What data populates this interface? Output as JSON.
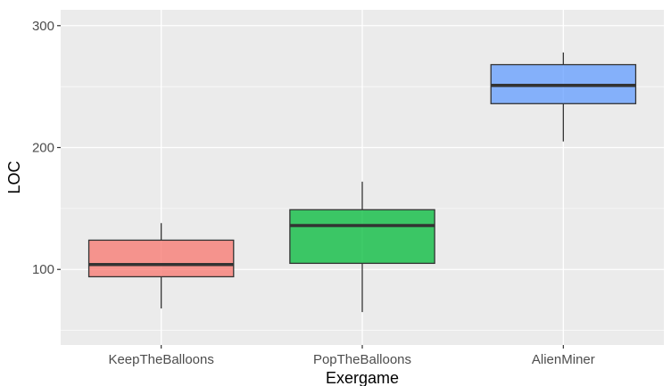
{
  "chart_data": {
    "type": "boxplot",
    "title": "",
    "xlabel": "Exergame",
    "ylabel": "LOC",
    "ylim": [
      38,
      313
    ],
    "yticks": [
      100,
      200,
      300
    ],
    "y_minor_ticks": [
      50,
      150,
      250
    ],
    "grid": true,
    "legend": "none",
    "categories": [
      "KeepTheBalloons",
      "PopTheBalloons",
      "AlienMiner"
    ],
    "boxes": [
      {
        "category": "KeepTheBalloons",
        "min": 68,
        "q1": 94,
        "median": 104,
        "q3": 124,
        "max": 138,
        "color": "#F8766D"
      },
      {
        "category": "PopTheBalloons",
        "min": 65,
        "q1": 105,
        "median": 136,
        "q3": 149,
        "max": 172,
        "color": "#00BA38"
      },
      {
        "category": "AlienMiner",
        "min": 205,
        "q1": 236,
        "median": 251,
        "q3": 268,
        "max": 278,
        "color": "#619CFF"
      }
    ],
    "colors": {
      "panel_background": "#EBEBEB",
      "grid_line": "#FFFFFF",
      "box_outline": "#333333",
      "median_line": "#333333",
      "tick_label": "#4D4D4D",
      "axis_title": "#000000"
    },
    "box_fill_opacity": 0.75
  }
}
